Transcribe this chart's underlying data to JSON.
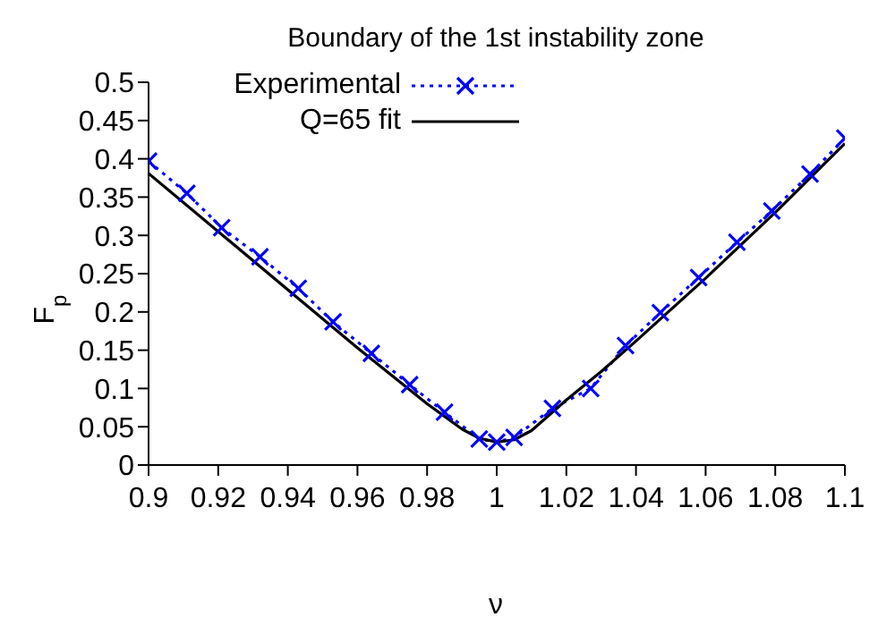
{
  "chart_data": {
    "type": "line",
    "title": "Boundary of the 1st instability zone",
    "xlabel": "ν",
    "ylabel": "F$_{p}$",
    "xlim": [
      0.9,
      1.1
    ],
    "xticks": [
      0.9,
      0.92,
      0.94,
      0.96,
      0.98,
      1,
      1.02,
      1.04,
      1.06,
      1.08,
      1.1
    ],
    "ylim": [
      0,
      0.5
    ],
    "yticks": [
      0,
      0.05,
      0.1,
      0.15,
      0.2,
      0.25,
      0.3,
      0.35,
      0.4,
      0.45,
      0.5
    ],
    "grid": false,
    "legend": "top left",
    "series": [
      {
        "name": "Experimental",
        "color": "#0000ff",
        "line_style": "dotted",
        "marker": "cross",
        "x": [
          0.9,
          0.911,
          0.921,
          0.932,
          0.943,
          0.953,
          0.964,
          0.975,
          0.985,
          0.995,
          1.0,
          1.005,
          1.016,
          1.027,
          1.037,
          1.047,
          1.058,
          1.069,
          1.079,
          1.09,
          1.1
        ],
        "values": [
          0.397,
          0.355,
          0.31,
          0.272,
          0.231,
          0.187,
          0.146,
          0.105,
          0.069,
          0.034,
          0.03,
          0.036,
          0.074,
          0.1,
          0.156,
          0.199,
          0.245,
          0.291,
          0.332,
          0.38,
          0.427
        ]
      },
      {
        "name": "Q=65 fit",
        "color": "#000000",
        "line_style": "solid",
        "marker": "none",
        "x": [
          0.9,
          0.92,
          0.94,
          0.96,
          0.98,
          0.99,
          0.995,
          1.0,
          1.005,
          1.01,
          1.02,
          1.03,
          1.04,
          1.06,
          1.08,
          1.1
        ],
        "values": [
          0.381,
          0.305,
          0.229,
          0.153,
          0.08,
          0.047,
          0.035,
          0.03,
          0.033,
          0.045,
          0.085,
          0.122,
          0.162,
          0.244,
          0.33,
          0.42
        ]
      }
    ]
  }
}
